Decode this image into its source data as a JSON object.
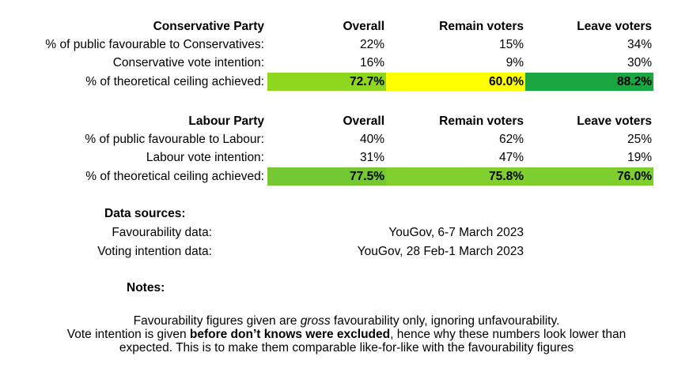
{
  "conservative": {
    "header": {
      "party": "Conservative Party",
      "overall": "Overall",
      "remain": "Remain voters",
      "leave": "Leave voters"
    },
    "favourable": {
      "label": "% of public favourable to Conservatives:",
      "overall": "22%",
      "remain": "15%",
      "leave": "34%"
    },
    "vote": {
      "label": "Conservative vote intention:",
      "overall": "16%",
      "remain": "9%",
      "leave": "30%"
    },
    "ceiling": {
      "label": "% of theoretical ceiling achieved:",
      "overall": "72.7%",
      "remain": "60.0%",
      "leave": "88.2%",
      "colors": {
        "overall": "#8fd61e",
        "remain": "#ffff00",
        "leave": "#1ca640"
      }
    }
  },
  "labour": {
    "header": {
      "party": "Labour Party",
      "overall": "Overall",
      "remain": "Remain voters",
      "leave": "Leave voters"
    },
    "favourable": {
      "label": "% of public favourable to Labour:",
      "overall": "40%",
      "remain": "62%",
      "leave": "25%"
    },
    "vote": {
      "label": "Labour vote intention:",
      "overall": "31%",
      "remain": "47%",
      "leave": "19%"
    },
    "ceiling": {
      "label": "% of theoretical ceiling achieved:",
      "overall": "77.5%",
      "remain": "75.8%",
      "leave": "76.0%",
      "colors": {
        "overall": "#73c934",
        "remain": "#7fcf2e",
        "leave": "#7dce2f"
      }
    }
  },
  "sources": {
    "title": "Data sources:",
    "favourability": {
      "label": "Favourability data:",
      "value": "YouGov, 6-7 March 2023"
    },
    "voting": {
      "label": "Voting intention data:",
      "value": "YouGov, 28 Feb-1 March 2023"
    }
  },
  "notes": {
    "title": "Notes:",
    "line1_a": "Favourability figures given are ",
    "line1_em": "gross",
    "line1_b": " favourability only, ignoring unfavourability.",
    "line2_a": "Vote intention is given ",
    "line2_bold": "before don’t knows were excluded",
    "line2_b": ", hence why these numbers look lower than",
    "line3": "expected. This is to make them comparable like-for-like with the favourability figures"
  }
}
